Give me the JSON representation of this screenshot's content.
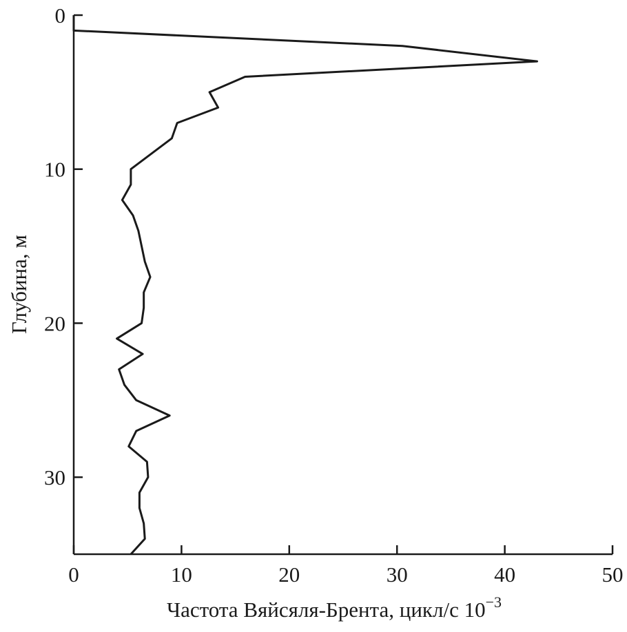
{
  "chart_data": {
    "type": "line",
    "xlabel": "Частота Вяйсяля-Брента, цикл/с 10",
    "xlabel_exponent": "−3",
    "ylabel": "Глубина, м",
    "x": [
      0,
      0,
      30.5,
      43,
      15.9,
      12.6,
      13.4,
      9.6,
      9.1,
      7.2,
      5.3,
      5.3,
      4.5,
      5.5,
      6.0,
      6.3,
      6.6,
      7.1,
      6.5,
      6.5,
      6.3,
      4.0,
      6.4,
      4.2,
      4.7,
      5.8,
      8.9,
      5.8,
      5.1,
      6.8,
      6.9,
      6.1,
      6.1,
      6.5,
      6.6,
      5.3
    ],
    "values": [
      0,
      1,
      2,
      3,
      4,
      5,
      6,
      7,
      8,
      9,
      10,
      11,
      12,
      13,
      14,
      15,
      16,
      17,
      18,
      19,
      20,
      21,
      22,
      23,
      24,
      25,
      26,
      27,
      28,
      29,
      30,
      31,
      32,
      33,
      34,
      35
    ],
    "color": "#1a1a1a",
    "xlim": [
      0,
      50
    ],
    "xticks": [
      0,
      10,
      20,
      30,
      40,
      50
    ],
    "ylim": [
      0,
      35
    ],
    "yticks": [
      0,
      10,
      20,
      30
    ],
    "y_inverted": true
  }
}
